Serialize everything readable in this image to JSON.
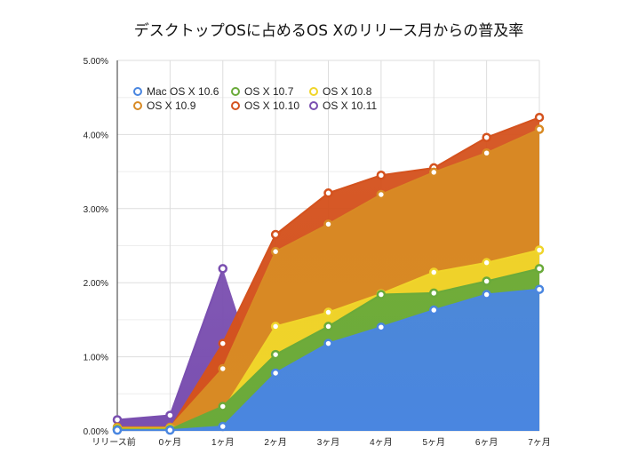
{
  "chart_data": {
    "type": "area",
    "title": "デスクトップOSに占めるOS Xのリリース月からの普及率",
    "categories": [
      "リリース前",
      "0ヶ月",
      "1ヶ月",
      "2ヶ月",
      "3ヶ月",
      "4ヶ月",
      "5ヶ月",
      "6ヶ月",
      "7ヶ月"
    ],
    "ylim": [
      0,
      5
    ],
    "yticks": [
      "0.00%",
      "1.00%",
      "2.00%",
      "3.00%",
      "4.00%",
      "5.00%"
    ],
    "grid": true,
    "legend": "top-left",
    "series": [
      {
        "name": "Mac OS X 10.6",
        "color": "#4a86e0",
        "values": [
          0.01,
          0.01,
          0.06,
          0.78,
          1.18,
          1.4,
          1.63,
          1.84,
          1.91
        ]
      },
      {
        "name": "OS X 10.7",
        "color": "#6aaa3a",
        "values": [
          0.02,
          0.02,
          0.33,
          1.03,
          1.41,
          1.84,
          1.86,
          2.02,
          2.19
        ]
      },
      {
        "name": "OS X 10.8",
        "color": "#f0d52a",
        "values": [
          0.03,
          0.03,
          0.27,
          1.41,
          1.6,
          1.85,
          2.14,
          2.27,
          2.44
        ]
      },
      {
        "name": "OS X 10.9",
        "color": "#d88a24",
        "values": [
          0.05,
          0.05,
          0.84,
          2.42,
          2.79,
          3.19,
          3.49,
          3.75,
          4.07
        ]
      },
      {
        "name": "OS X 10.10",
        "color": "#d4521e",
        "values": [
          0.02,
          0.03,
          1.18,
          2.65,
          3.21,
          3.45,
          3.55,
          3.96,
          4.23
        ]
      },
      {
        "name": "OS X 10.11",
        "color": "#7a4fb0",
        "values": [
          0.15,
          0.21,
          2.19,
          null,
          null,
          null,
          null,
          null,
          null
        ]
      }
    ]
  }
}
